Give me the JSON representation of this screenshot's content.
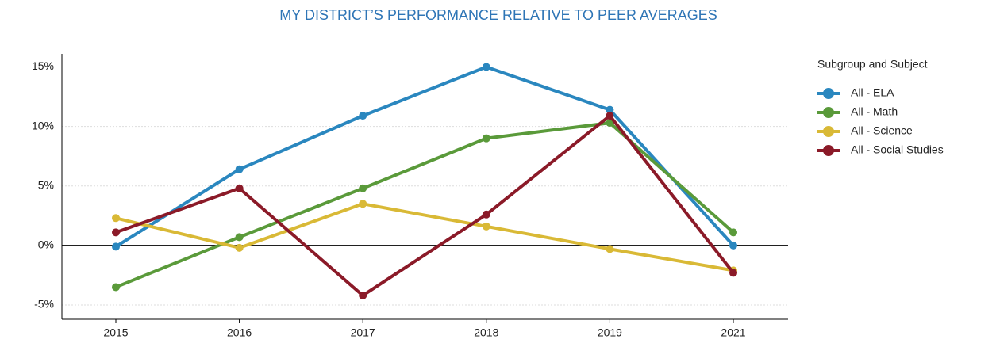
{
  "chart_data": {
    "type": "line",
    "title": "MY DISTRICT’S PERFORMANCE RELATIVE TO PEER AVERAGES",
    "categories": [
      "2015",
      "2016",
      "2017",
      "2018",
      "2019",
      "2021"
    ],
    "series": [
      {
        "name": "All - ELA",
        "color": "#2a87bf",
        "values": [
          -0.1,
          6.4,
          10.9,
          15,
          11.4,
          0
        ]
      },
      {
        "name": "All - Math",
        "color": "#5a9a3a",
        "values": [
          -3.5,
          0.7,
          4.8,
          9.0,
          10.3,
          1.1
        ]
      },
      {
        "name": "All - Science",
        "color": "#d9b936",
        "values": [
          2.3,
          -0.2,
          3.5,
          1.6,
          -0.3,
          -2.1
        ]
      },
      {
        "name": "All - Social Studies",
        "color": "#8b1a28",
        "values": [
          1.1,
          4.8,
          -4.2,
          2.6,
          10.9,
          -2.3
        ]
      }
    ],
    "legend_title": "Subgroup and Subject",
    "ylim": [
      -6.2,
      16.1
    ],
    "yticks": [
      {
        "value": -5,
        "label": "-5%"
      },
      {
        "value": 0,
        "label": "0%"
      },
      {
        "value": 5,
        "label": "5%"
      },
      {
        "value": 10,
        "label": "10%"
      },
      {
        "value": 15,
        "label": "15%"
      }
    ],
    "grid": true,
    "legend": "right"
  }
}
